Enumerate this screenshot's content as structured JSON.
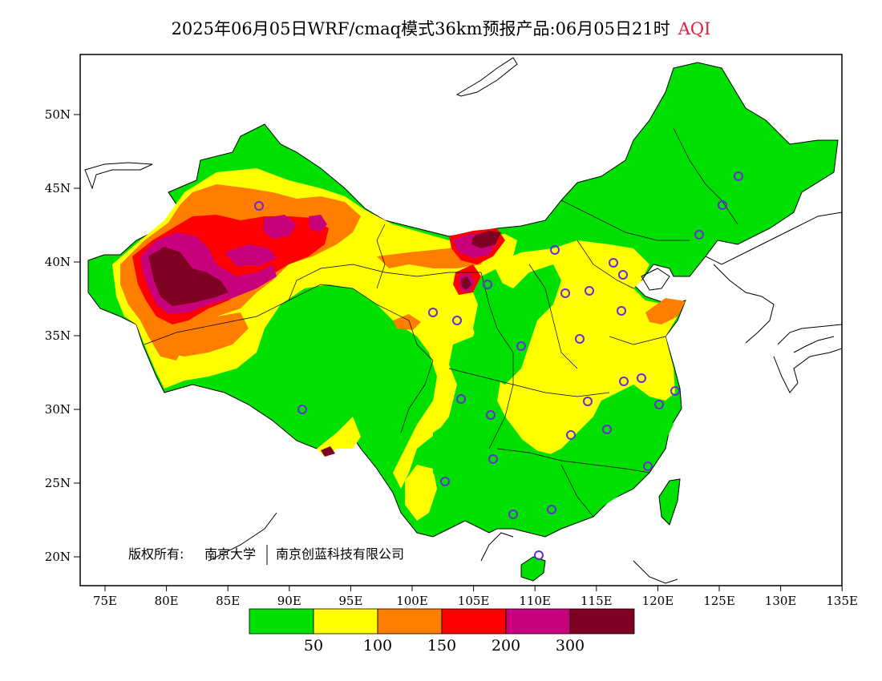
{
  "title": {
    "text": "2025年06月05日WRF/cmaq模式36km预报产品:06月05日21时",
    "variable": "AQI"
  },
  "copyright": {
    "prefix": "版权所有:",
    "owner1": "南京大学",
    "owner2": "南京创蓝科技有限公司"
  },
  "axes": {
    "lat_ticks": [
      "50N",
      "45N",
      "40N",
      "35N",
      "30N",
      "25N",
      "20N"
    ],
    "lon_ticks": [
      "75E",
      "80E",
      "85E",
      "90E",
      "95E",
      "100E",
      "105E",
      "110E",
      "115E",
      "120E",
      "125E",
      "130E",
      "135E"
    ]
  },
  "colorbar": {
    "colors": [
      "#00e000",
      "#ffff00",
      "#ff7e00",
      "#ff0000",
      "#c8007c",
      "#7e0023"
    ],
    "labels": [
      "50",
      "100",
      "150",
      "200",
      "300"
    ]
  },
  "colors": {
    "good": "#00e000",
    "moderate": "#ffff00",
    "usg": "#ff7e00",
    "unhealthy": "#ff0000",
    "very_unhealthy": "#c8007c",
    "hazardous": "#7e0023",
    "station_marker": "#6a2bd8"
  }
}
